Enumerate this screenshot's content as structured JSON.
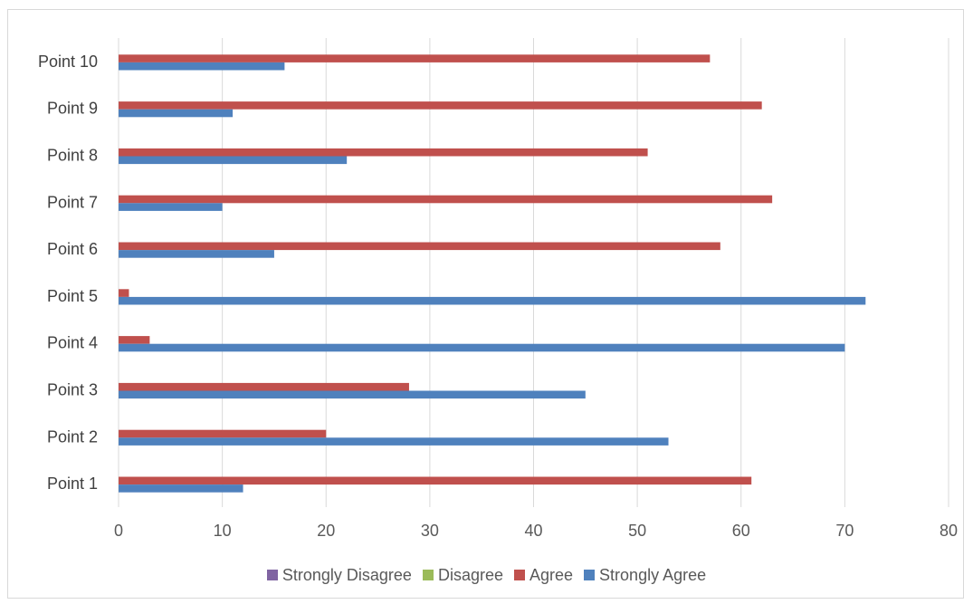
{
  "chart_data": {
    "type": "bar",
    "orientation": "horizontal",
    "categories": [
      "Point 1",
      "Point 2",
      "Point 3",
      "Point 4",
      "Point 5",
      "Point 6",
      "Point 7",
      "Point 8",
      "Point 9",
      "Point 10"
    ],
    "series": [
      {
        "name": "Strongly Disagree",
        "color": "#8064a2",
        "values": [
          0,
          0,
          0,
          0,
          0,
          0,
          0,
          0,
          0,
          0
        ]
      },
      {
        "name": "Disagree",
        "color": "#9bbb59",
        "values": [
          0,
          0,
          0,
          0,
          0,
          0,
          0,
          0,
          0,
          0
        ]
      },
      {
        "name": "Agree",
        "color": "#c0504d",
        "values": [
          61,
          20,
          28,
          3,
          1,
          58,
          63,
          51,
          62,
          57
        ]
      },
      {
        "name": "Strongly Agree",
        "color": "#4f81bd",
        "values": [
          12,
          53,
          45,
          70,
          72,
          15,
          10,
          22,
          11,
          16
        ]
      }
    ],
    "xlim": [
      0,
      80
    ],
    "xticks": [
      0,
      10,
      20,
      30,
      40,
      50,
      60,
      70,
      80
    ],
    "grid": true,
    "legend_position": "bottom"
  }
}
